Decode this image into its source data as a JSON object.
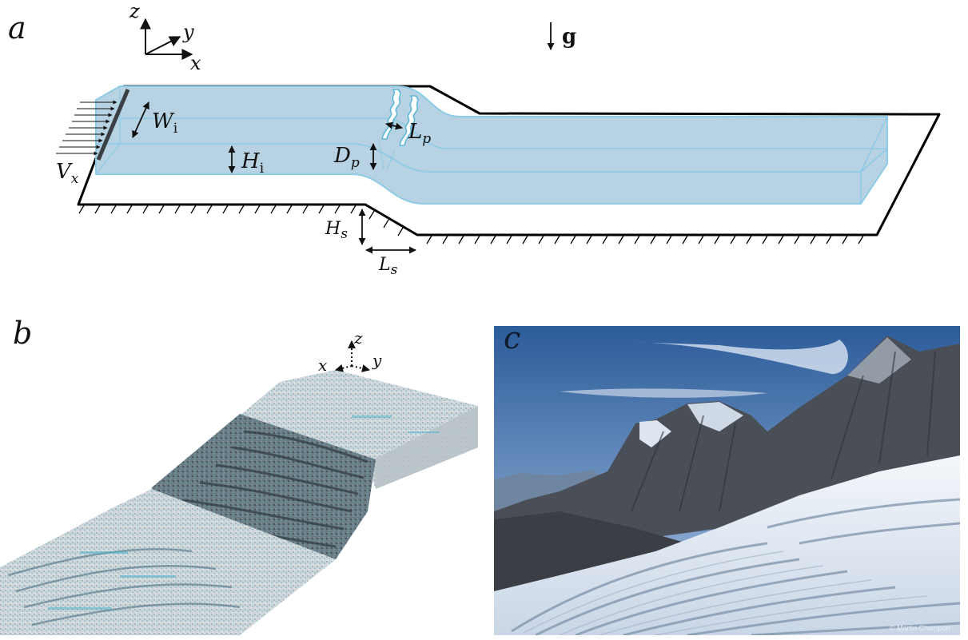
{
  "panel_a": {
    "letter": "a",
    "axes": {
      "z": "z",
      "y": "y",
      "x": "x"
    },
    "gravity": "g",
    "labels": {
      "width": {
        "main": "W",
        "sub": "i"
      },
      "height": {
        "main": "H",
        "sub": "i"
      },
      "velocity": {
        "main": "V",
        "sub": "x"
      },
      "perturb_depth": {
        "main": "D",
        "sub": "p"
      },
      "perturb_length": {
        "main": "L",
        "sub": "p"
      },
      "step_height": {
        "main": "H",
        "sub": "s"
      },
      "step_length": {
        "main": "L",
        "sub": "s"
      }
    },
    "colors": {
      "ice_fill": "#b7d2e2",
      "ice_edge": "#8ecbe6",
      "bed": "#000000"
    }
  },
  "panel_b": {
    "letter": "b",
    "axes": {
      "z": "z",
      "x": "x",
      "y": "y"
    },
    "colors": {
      "particles_light": "#c6cfd4",
      "particles_cyan": "#5fb7cc",
      "crevasse_dark": "#3d4c55"
    }
  },
  "panel_c": {
    "letter": "c",
    "credit": "© Martin Champon",
    "colors": {
      "sky_top": "#2f5f9c",
      "sky_bottom": "#9bbbe0",
      "rock": "#4a4f57",
      "snow": "#eef2f7"
    }
  }
}
